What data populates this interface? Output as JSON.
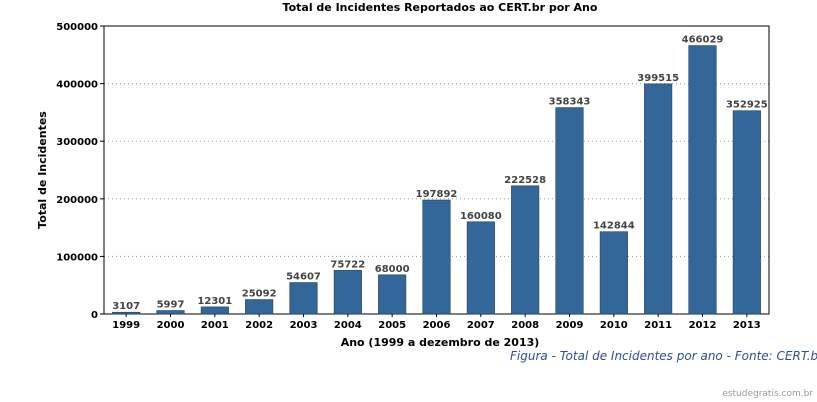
{
  "caption": "Figura  - Total de Incidentes por ano - Fonte: CERT.br",
  "watermark": "estudegratis.com.br",
  "colors": {
    "bar": "#336699",
    "bar_stroke": "#1f3d5c",
    "grid": "#9a9a9a"
  },
  "chart_data": {
    "type": "bar",
    "title": "Total de Incidentes Reportados ao CERT.br por Ano",
    "xlabel": "Ano (1999 a dezembro de 2013)",
    "ylabel": "Total de Incidentes",
    "ylim": [
      0,
      500000
    ],
    "yticks": [
      "0",
      "100000",
      "200000",
      "300000",
      "400000",
      "500000"
    ],
    "grid": true,
    "categories": [
      "1999",
      "2000",
      "2001",
      "2002",
      "2003",
      "2004",
      "2005",
      "2006",
      "2007",
      "2008",
      "2009",
      "2010",
      "2011",
      "2012",
      "2013"
    ],
    "values": [
      3107,
      5997,
      12301,
      25092,
      54607,
      75722,
      68000,
      197892,
      160080,
      222528,
      358343,
      142844,
      399515,
      466029,
      352925
    ],
    "data_labels": [
      "3107",
      "5997",
      "12301",
      "25092",
      "54607",
      "75722",
      "68000",
      "197892",
      "160080",
      "222528",
      "358343",
      "142844",
      "399515",
      "466029",
      "352925"
    ]
  }
}
